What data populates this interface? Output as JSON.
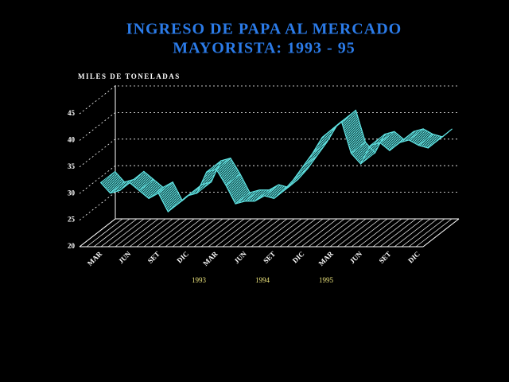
{
  "chart_data": {
    "type": "ribbon",
    "title": [
      "INGRESO DE PAPA AL MERCADO",
      "MAYORISTA: 1993 - 95"
    ],
    "y_label": "MILES DE TONELADAS",
    "categories": [
      null,
      null,
      "MAR",
      null,
      null,
      "JUN",
      null,
      null,
      "SET",
      null,
      null,
      "DIC",
      null,
      null,
      "MAR",
      null,
      null,
      "JUN",
      null,
      null,
      "SET",
      null,
      null,
      "DIC",
      null,
      null,
      "MAR",
      null,
      null,
      "JUN",
      null,
      null,
      "SET",
      null,
      null,
      "DIC"
    ],
    "years": [
      "1993",
      "1994",
      "1995"
    ],
    "values": [
      30.5,
      28.5,
      29,
      30.5,
      29,
      27.5,
      28.5,
      25,
      26.5,
      28,
      28.5,
      32.5,
      33,
      30,
      26.5,
      27,
      27,
      28,
      27.5,
      29,
      31,
      33.5,
      36,
      39,
      40.5,
      42,
      36,
      34,
      37.5,
      38,
      36.5,
      38,
      38.5,
      37.5,
      37,
      38.5
    ],
    "color": "#5fe0e0",
    "ylim": [
      20,
      45
    ],
    "yticks": [
      20,
      25,
      30,
      35,
      40,
      45
    ],
    "grid": true
  }
}
